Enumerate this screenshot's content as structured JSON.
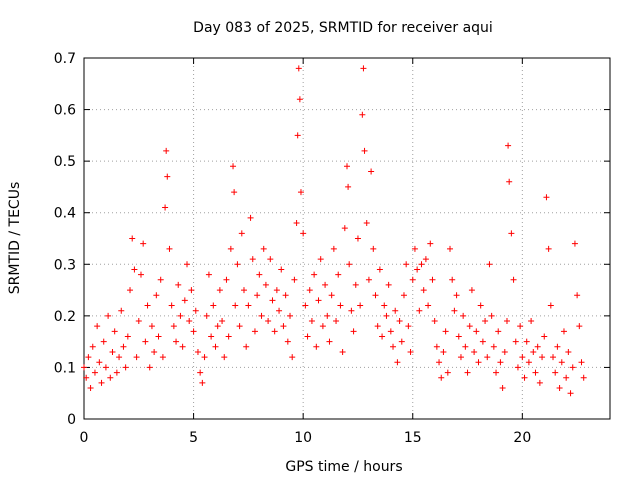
{
  "chart_data": {
    "type": "scatter",
    "title": "Day 083 of 2025, SRMTID for receiver aqui",
    "xlabel": "GPS time / hours",
    "ylabel": "SRMTID / TECUs",
    "xlim": [
      0,
      24.0
    ],
    "ylim": [
      0,
      0.7
    ],
    "x_ticks": [
      0,
      5,
      10,
      15,
      20
    ],
    "y_ticks": [
      0,
      0.1,
      0.2,
      0.3,
      0.4,
      0.5,
      0.6,
      0.7
    ],
    "x_tick_labels": [
      "0",
      "5",
      "10",
      "15",
      "20"
    ],
    "y_tick_labels": [
      "0",
      "0.1",
      "0.2",
      "0.3",
      "0.4",
      "0.5",
      "0.6",
      "0.7"
    ],
    "grid": true,
    "marker": "+",
    "color": "#ff0000",
    "series": [
      {
        "name": "SRMTID",
        "points": [
          [
            0.0,
            0.1
          ],
          [
            0.1,
            0.08
          ],
          [
            0.2,
            0.12
          ],
          [
            0.3,
            0.06
          ],
          [
            0.4,
            0.14
          ],
          [
            0.5,
            0.09
          ],
          [
            0.6,
            0.18
          ],
          [
            0.7,
            0.11
          ],
          [
            0.8,
            0.07
          ],
          [
            0.9,
            0.15
          ],
          [
            1.0,
            0.1
          ],
          [
            1.1,
            0.2
          ],
          [
            1.2,
            0.08
          ],
          [
            1.3,
            0.13
          ],
          [
            1.4,
            0.17
          ],
          [
            1.5,
            0.09
          ],
          [
            1.6,
            0.12
          ],
          [
            1.7,
            0.21
          ],
          [
            1.8,
            0.14
          ],
          [
            1.9,
            0.1
          ],
          [
            2.0,
            0.16
          ],
          [
            2.1,
            0.25
          ],
          [
            2.2,
            0.35
          ],
          [
            2.3,
            0.29
          ],
          [
            2.4,
            0.12
          ],
          [
            2.5,
            0.19
          ],
          [
            2.6,
            0.28
          ],
          [
            2.7,
            0.34
          ],
          [
            2.8,
            0.15
          ],
          [
            2.9,
            0.22
          ],
          [
            3.0,
            0.1
          ],
          [
            3.1,
            0.18
          ],
          [
            3.2,
            0.13
          ],
          [
            3.3,
            0.24
          ],
          [
            3.4,
            0.16
          ],
          [
            3.5,
            0.27
          ],
          [
            3.6,
            0.12
          ],
          [
            3.7,
            0.41
          ],
          [
            3.75,
            0.52
          ],
          [
            3.8,
            0.47
          ],
          [
            3.9,
            0.33
          ],
          [
            4.0,
            0.22
          ],
          [
            4.1,
            0.18
          ],
          [
            4.2,
            0.15
          ],
          [
            4.3,
            0.26
          ],
          [
            4.4,
            0.2
          ],
          [
            4.5,
            0.14
          ],
          [
            4.6,
            0.23
          ],
          [
            4.7,
            0.3
          ],
          [
            4.8,
            0.19
          ],
          [
            4.9,
            0.25
          ],
          [
            5.0,
            0.17
          ],
          [
            5.1,
            0.21
          ],
          [
            5.2,
            0.13
          ],
          [
            5.3,
            0.09
          ],
          [
            5.4,
            0.07
          ],
          [
            5.5,
            0.12
          ],
          [
            5.6,
            0.2
          ],
          [
            5.7,
            0.28
          ],
          [
            5.8,
            0.16
          ],
          [
            5.9,
            0.22
          ],
          [
            6.0,
            0.14
          ],
          [
            6.1,
            0.18
          ],
          [
            6.2,
            0.25
          ],
          [
            6.3,
            0.19
          ],
          [
            6.4,
            0.12
          ],
          [
            6.5,
            0.27
          ],
          [
            6.6,
            0.16
          ],
          [
            6.7,
            0.33
          ],
          [
            6.8,
            0.49
          ],
          [
            6.85,
            0.44
          ],
          [
            6.9,
            0.22
          ],
          [
            7.0,
            0.3
          ],
          [
            7.1,
            0.18
          ],
          [
            7.2,
            0.36
          ],
          [
            7.3,
            0.25
          ],
          [
            7.4,
            0.14
          ],
          [
            7.5,
            0.22
          ],
          [
            7.6,
            0.39
          ],
          [
            7.7,
            0.31
          ],
          [
            7.8,
            0.17
          ],
          [
            7.9,
            0.24
          ],
          [
            8.0,
            0.28
          ],
          [
            8.1,
            0.2
          ],
          [
            8.2,
            0.33
          ],
          [
            8.3,
            0.26
          ],
          [
            8.4,
            0.19
          ],
          [
            8.5,
            0.31
          ],
          [
            8.6,
            0.23
          ],
          [
            8.7,
            0.17
          ],
          [
            8.8,
            0.25
          ],
          [
            8.9,
            0.21
          ],
          [
            9.0,
            0.29
          ],
          [
            9.1,
            0.18
          ],
          [
            9.2,
            0.24
          ],
          [
            9.3,
            0.15
          ],
          [
            9.4,
            0.2
          ],
          [
            9.5,
            0.12
          ],
          [
            9.6,
            0.27
          ],
          [
            9.7,
            0.38
          ],
          [
            9.75,
            0.55
          ],
          [
            9.8,
            0.68
          ],
          [
            9.85,
            0.62
          ],
          [
            9.9,
            0.44
          ],
          [
            10.0,
            0.36
          ],
          [
            10.1,
            0.22
          ],
          [
            10.2,
            0.16
          ],
          [
            10.3,
            0.25
          ],
          [
            10.4,
            0.19
          ],
          [
            10.5,
            0.28
          ],
          [
            10.6,
            0.14
          ],
          [
            10.7,
            0.23
          ],
          [
            10.8,
            0.31
          ],
          [
            10.9,
            0.18
          ],
          [
            11.0,
            0.26
          ],
          [
            11.1,
            0.2
          ],
          [
            11.2,
            0.15
          ],
          [
            11.3,
            0.24
          ],
          [
            11.4,
            0.33
          ],
          [
            11.5,
            0.19
          ],
          [
            11.6,
            0.28
          ],
          [
            11.7,
            0.22
          ],
          [
            11.8,
            0.13
          ],
          [
            11.9,
            0.37
          ],
          [
            12.0,
            0.49
          ],
          [
            12.05,
            0.45
          ],
          [
            12.1,
            0.3
          ],
          [
            12.2,
            0.21
          ],
          [
            12.3,
            0.17
          ],
          [
            12.4,
            0.26
          ],
          [
            12.5,
            0.35
          ],
          [
            12.6,
            0.22
          ],
          [
            12.7,
            0.59
          ],
          [
            12.75,
            0.68
          ],
          [
            12.8,
            0.52
          ],
          [
            12.9,
            0.38
          ],
          [
            13.0,
            0.27
          ],
          [
            13.1,
            0.48
          ],
          [
            13.2,
            0.33
          ],
          [
            13.3,
            0.24
          ],
          [
            13.4,
            0.18
          ],
          [
            13.5,
            0.29
          ],
          [
            13.6,
            0.16
          ],
          [
            13.7,
            0.22
          ],
          [
            13.8,
            0.2
          ],
          [
            13.9,
            0.26
          ],
          [
            14.0,
            0.17
          ],
          [
            14.1,
            0.14
          ],
          [
            14.2,
            0.21
          ],
          [
            14.3,
            0.11
          ],
          [
            14.4,
            0.19
          ],
          [
            14.5,
            0.15
          ],
          [
            14.6,
            0.24
          ],
          [
            14.7,
            0.3
          ],
          [
            14.8,
            0.18
          ],
          [
            14.9,
            0.13
          ],
          [
            15.0,
            0.27
          ],
          [
            15.1,
            0.33
          ],
          [
            15.2,
            0.29
          ],
          [
            15.3,
            0.21
          ],
          [
            15.4,
            0.3
          ],
          [
            15.5,
            0.25
          ],
          [
            15.6,
            0.31
          ],
          [
            15.7,
            0.22
          ],
          [
            15.8,
            0.34
          ],
          [
            15.9,
            0.27
          ],
          [
            16.0,
            0.19
          ],
          [
            16.1,
            0.14
          ],
          [
            16.2,
            0.11
          ],
          [
            16.3,
            0.08
          ],
          [
            16.4,
            0.13
          ],
          [
            16.5,
            0.17
          ],
          [
            16.6,
            0.09
          ],
          [
            16.7,
            0.33
          ],
          [
            16.8,
            0.27
          ],
          [
            16.9,
            0.21
          ],
          [
            17.0,
            0.24
          ],
          [
            17.1,
            0.16
          ],
          [
            17.2,
            0.12
          ],
          [
            17.3,
            0.2
          ],
          [
            17.4,
            0.14
          ],
          [
            17.5,
            0.09
          ],
          [
            17.6,
            0.18
          ],
          [
            17.7,
            0.25
          ],
          [
            17.8,
            0.13
          ],
          [
            17.9,
            0.17
          ],
          [
            18.0,
            0.11
          ],
          [
            18.1,
            0.22
          ],
          [
            18.2,
            0.15
          ],
          [
            18.3,
            0.19
          ],
          [
            18.4,
            0.12
          ],
          [
            18.5,
            0.3
          ],
          [
            18.6,
            0.2
          ],
          [
            18.7,
            0.14
          ],
          [
            18.8,
            0.09
          ],
          [
            18.9,
            0.17
          ],
          [
            19.0,
            0.11
          ],
          [
            19.1,
            0.06
          ],
          [
            19.2,
            0.13
          ],
          [
            19.3,
            0.19
          ],
          [
            19.35,
            0.53
          ],
          [
            19.4,
            0.46
          ],
          [
            19.5,
            0.36
          ],
          [
            19.6,
            0.27
          ],
          [
            19.7,
            0.15
          ],
          [
            19.8,
            0.1
          ],
          [
            19.9,
            0.18
          ],
          [
            20.0,
            0.12
          ],
          [
            20.1,
            0.08
          ],
          [
            20.2,
            0.15
          ],
          [
            20.3,
            0.11
          ],
          [
            20.4,
            0.19
          ],
          [
            20.5,
            0.13
          ],
          [
            20.6,
            0.09
          ],
          [
            20.7,
            0.14
          ],
          [
            20.8,
            0.07
          ],
          [
            20.9,
            0.12
          ],
          [
            21.0,
            0.16
          ],
          [
            21.1,
            0.43
          ],
          [
            21.2,
            0.33
          ],
          [
            21.3,
            0.22
          ],
          [
            21.4,
            0.12
          ],
          [
            21.5,
            0.09
          ],
          [
            21.6,
            0.14
          ],
          [
            21.7,
            0.06
          ],
          [
            21.8,
            0.11
          ],
          [
            21.9,
            0.17
          ],
          [
            22.0,
            0.08
          ],
          [
            22.1,
            0.13
          ],
          [
            22.2,
            0.05
          ],
          [
            22.3,
            0.1
          ],
          [
            22.4,
            0.34
          ],
          [
            22.5,
            0.24
          ],
          [
            22.6,
            0.18
          ],
          [
            22.7,
            0.11
          ],
          [
            22.8,
            0.08
          ]
        ]
      }
    ]
  }
}
